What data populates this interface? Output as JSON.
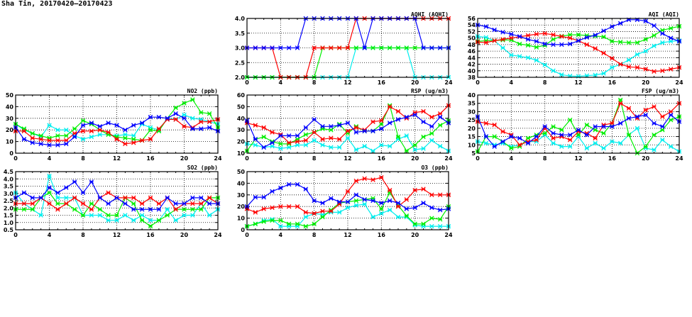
{
  "title": "Sha Tin, 20170420—20170423",
  "series_colors": {
    "blue": "#0000ff",
    "red": "#ff0000",
    "green": "#00ee00",
    "cyan": "#00eeee"
  },
  "chart_data": [
    {
      "id": "aqhi",
      "type": "line",
      "title": "AQHI (AQHI)",
      "xlim": [
        0,
        24
      ],
      "xticks": [
        0,
        4,
        8,
        12,
        16,
        20,
        24
      ],
      "ylim": [
        2,
        4
      ],
      "yticks": [
        "2.0",
        "2.5",
        "3.0",
        "3.5",
        "4.0"
      ],
      "grid": true,
      "series": [
        {
          "name": "cyan",
          "values": [
            2,
            2,
            2,
            2,
            2,
            2,
            2,
            2,
            2,
            2,
            2,
            2,
            2,
            3,
            3,
            3,
            3,
            3,
            3,
            3,
            2,
            2,
            2,
            2,
            2
          ]
        },
        {
          "name": "green",
          "values": [
            2,
            2,
            2,
            2,
            2,
            2,
            2,
            2,
            2,
            3,
            3,
            3,
            3,
            3,
            3,
            3,
            3,
            3,
            3,
            3,
            3,
            3,
            3,
            3,
            3
          ]
        },
        {
          "name": "red",
          "values": [
            3,
            3,
            3,
            3,
            2,
            2,
            2,
            2,
            3,
            3,
            3,
            3,
            3,
            4,
            4,
            4,
            4,
            4,
            4,
            4,
            4,
            4,
            4,
            4,
            4
          ]
        },
        {
          "name": "blue",
          "values": [
            3,
            3,
            3,
            3,
            3,
            3,
            3,
            4,
            4,
            4,
            4,
            4,
            4,
            4,
            3,
            4,
            4,
            4,
            4,
            4,
            4,
            3,
            3,
            3,
            3
          ]
        }
      ]
    },
    {
      "id": "aqi",
      "type": "line",
      "title": "AQI (AQI)",
      "xlim": [
        0,
        24
      ],
      "xticks": [
        0,
        4,
        8,
        12,
        16,
        20,
        24
      ],
      "ylim": [
        38,
        56
      ],
      "yticks": [
        "38",
        "40",
        "42",
        "44",
        "46",
        "48",
        "50",
        "52",
        "54",
        "56"
      ],
      "grid": true,
      "series": [
        {
          "name": "cyan",
          "values": [
            50.5,
            50.2,
            49.2,
            47,
            44.8,
            44.4,
            44,
            43.2,
            41.8,
            40,
            38.8,
            38.4,
            38.3,
            38.5,
            38.7,
            39.2,
            41,
            42,
            43.3,
            45,
            46,
            47.6,
            48.6,
            49,
            49.2
          ]
        },
        {
          "name": "green",
          "values": [
            49,
            49.2,
            49.2,
            49.4,
            49.4,
            48.2,
            47.8,
            47.2,
            47.8,
            49.6,
            50.6,
            51,
            51,
            50.8,
            50.6,
            50.4,
            49,
            48.8,
            48.6,
            48.6,
            49.6,
            50.8,
            52.4,
            53,
            53.6
          ]
        },
        {
          "name": "red",
          "values": [
            48.8,
            48.6,
            49.2,
            49.6,
            50,
            50.4,
            50.8,
            51.2,
            51.4,
            51,
            50.5,
            50,
            49.2,
            48,
            46.8,
            45.4,
            43.8,
            42,
            41.2,
            41,
            40.5,
            39.8,
            40,
            40.5,
            41
          ]
        },
        {
          "name": "blue",
          "values": [
            54,
            53.5,
            52.5,
            51.8,
            51.2,
            50.5,
            49.6,
            49,
            48.2,
            48,
            48,
            48.2,
            49.2,
            50.2,
            50.9,
            52.2,
            53.5,
            54.5,
            55.6,
            55.6,
            55.2,
            53.8,
            51.4,
            50,
            49
          ]
        }
      ]
    },
    {
      "id": "no2",
      "type": "line",
      "title": "NO2 (ppb)",
      "xlim": [
        0,
        24
      ],
      "xticks": [
        0,
        4,
        8,
        12,
        16,
        20,
        24
      ],
      "ylim": [
        0,
        50
      ],
      "yticks": [
        "0",
        "10",
        "20",
        "30",
        "40",
        "50"
      ],
      "grid": true,
      "series": [
        {
          "name": "cyan",
          "values": [
            25,
            20,
            17,
            14,
            24,
            20,
            20,
            15,
            12,
            14,
            16,
            16,
            15,
            16,
            15,
            25,
            22,
            20,
            30,
            29,
            33,
            30,
            29,
            27,
            25
          ]
        },
        {
          "name": "green",
          "values": [
            25,
            21,
            17,
            15,
            13,
            15,
            15,
            21,
            28,
            25,
            20,
            16,
            14,
            13,
            12,
            11,
            20,
            19,
            30,
            39,
            43,
            46,
            35,
            34,
            22
          ]
        },
        {
          "name": "red",
          "values": [
            19,
            19,
            13,
            12,
            11,
            11,
            11,
            17,
            19,
            19,
            20,
            18,
            12,
            8,
            9,
            11,
            12,
            21,
            29,
            29,
            23,
            22,
            27,
            27,
            29
          ]
        },
        {
          "name": "blue",
          "values": [
            22,
            12,
            9,
            8,
            7,
            7,
            8,
            14,
            24,
            26,
            23,
            26,
            24,
            20,
            24,
            26,
            31,
            31,
            30,
            34,
            30,
            21,
            21,
            22,
            19
          ]
        }
      ]
    },
    {
      "id": "rsp",
      "type": "line",
      "title": "RSP (ug/m3)",
      "xlim": [
        0,
        24
      ],
      "xticks": [
        0,
        4,
        8,
        12,
        16,
        20,
        24
      ],
      "ylim": [
        10,
        60
      ],
      "yticks": [
        "10",
        "20",
        "30",
        "40",
        "50",
        "60"
      ],
      "grid": true,
      "series": [
        {
          "name": "cyan",
          "values": [
            18,
            17,
            15,
            16,
            14,
            15,
            17,
            17,
            21,
            17,
            15,
            15,
            23,
            13,
            16,
            12,
            17,
            16,
            22,
            25,
            13,
            14,
            21,
            16,
            12
          ]
        },
        {
          "name": "green",
          "values": [
            12,
            22,
            24,
            20,
            18,
            18,
            22,
            26,
            28,
            31,
            30,
            35,
            27,
            33,
            29,
            29,
            35,
            51,
            24,
            12,
            17,
            24,
            27,
            34,
            38
          ]
        },
        {
          "name": "red",
          "values": [
            36,
            34,
            32,
            28,
            26,
            19,
            20,
            21,
            28,
            22,
            23,
            22,
            29,
            32,
            30,
            37,
            38,
            50,
            46,
            40,
            45,
            46,
            41,
            44,
            51
          ]
        },
        {
          "name": "blue",
          "values": [
            38,
            22,
            15,
            19,
            25,
            25,
            25,
            32,
            39,
            33,
            33,
            34,
            36,
            28,
            29,
            29,
            31,
            36,
            39,
            41,
            43,
            37,
            33,
            41,
            36
          ]
        }
      ]
    },
    {
      "id": "fsp",
      "type": "line",
      "title": "FSP (ug/m3)",
      "xlim": [
        0,
        24
      ],
      "xticks": [
        0,
        4,
        8,
        12,
        16,
        20,
        24
      ],
      "ylim": [
        5,
        40
      ],
      "yticks": [
        "5",
        "10",
        "15",
        "20",
        "25",
        "30",
        "35",
        "40"
      ],
      "grid": true,
      "series": [
        {
          "name": "cyan",
          "values": [
            12,
            11,
            10,
            11,
            9,
            10,
            12,
            12,
            16,
            11,
            9,
            9,
            15,
            8,
            11,
            8,
            12,
            11,
            16,
            20,
            8,
            7,
            13,
            9,
            6
          ]
        },
        {
          "name": "green",
          "values": [
            6,
            15,
            15,
            12,
            8,
            9,
            14,
            16,
            17,
            21,
            19,
            25,
            16,
            22,
            19,
            17,
            23,
            37,
            16,
            5,
            9,
            16,
            19,
            25,
            27
          ]
        },
        {
          "name": "red",
          "values": [
            24,
            23,
            22,
            18,
            16,
            10,
            12,
            13,
            20,
            14,
            15,
            13,
            18,
            17,
            14,
            22,
            23,
            35,
            32,
            26,
            31,
            33,
            27,
            30,
            35
          ]
        },
        {
          "name": "blue",
          "values": [
            27,
            15,
            9,
            12,
            15,
            14,
            11,
            15,
            21,
            17,
            16,
            16,
            19,
            16,
            21,
            21,
            21,
            23,
            26,
            27,
            28,
            23,
            21,
            28,
            24
          ]
        }
      ]
    },
    {
      "id": "so2",
      "type": "line",
      "title": "SO2 (ppb)",
      "xlim": [
        0,
        24
      ],
      "xticks": [
        0,
        4,
        8,
        12,
        16,
        20,
        24
      ],
      "ylim": [
        0.5,
        4.5
      ],
      "yticks": [
        "0.5",
        "1.0",
        "1.5",
        "2.0",
        "2.5",
        "3.0",
        "3.5",
        "4.0",
        "4.5"
      ],
      "grid": true,
      "series": [
        {
          "name": "cyan",
          "values": [
            3.05,
            2.3,
            1.9,
            1.5,
            4.2,
            2.7,
            2.7,
            2.7,
            1.5,
            1.5,
            1.5,
            1.15,
            1.15,
            1.5,
            1.15,
            1.5,
            1.15,
            1.15,
            1.9,
            1.15,
            1.5,
            1.5,
            2.3,
            1.5,
            1.9
          ]
        },
        {
          "name": "green",
          "values": [
            1.9,
            1.9,
            1.9,
            2.7,
            3.05,
            2.3,
            2.3,
            1.9,
            1.5,
            2.3,
            1.9,
            1.5,
            1.5,
            2.7,
            2.3,
            1.15,
            0.75,
            1.15,
            1.5,
            1.9,
            1.9,
            1.9,
            1.9,
            2.7,
            2.7
          ]
        },
        {
          "name": "red",
          "values": [
            2.3,
            2.3,
            2.3,
            2.7,
            2.3,
            1.9,
            2.3,
            2.7,
            2.3,
            1.9,
            2.7,
            3.05,
            2.7,
            2.7,
            2.7,
            2.3,
            2.7,
            2.3,
            2.7,
            1.9,
            2.3,
            2.3,
            2.3,
            2.7,
            2.3
          ]
        },
        {
          "name": "blue",
          "values": [
            2.7,
            3.05,
            2.7,
            2.7,
            3.4,
            3.05,
            3.4,
            3.8,
            3.05,
            3.8,
            2.7,
            2.3,
            2.7,
            2.3,
            1.9,
            1.9,
            1.9,
            1.9,
            2.7,
            2.3,
            2.3,
            2.7,
            2.7,
            2.3,
            2.3
          ]
        }
      ]
    },
    {
      "id": "o3",
      "type": "line",
      "title": "O3 (ppb)",
      "xlim": [
        0,
        24
      ],
      "xticks": [
        0,
        4,
        8,
        12,
        16,
        20,
        24
      ],
      "ylim": [
        0,
        50
      ],
      "yticks": [
        "0",
        "10",
        "20",
        "30",
        "40",
        "50"
      ],
      "grid": true,
      "series": [
        {
          "name": "cyan",
          "values": [
            3,
            5,
            8,
            9,
            3,
            3,
            3,
            11,
            14,
            13,
            15,
            15,
            19,
            21,
            22,
            11,
            14,
            17,
            11,
            11,
            4,
            3,
            3,
            3,
            3
          ]
        },
        {
          "name": "green",
          "values": [
            3,
            5,
            7,
            8,
            8,
            5,
            5,
            3,
            5,
            11,
            17,
            23,
            24,
            25,
            26,
            27,
            18,
            32,
            21,
            12,
            5,
            5,
            10,
            9,
            20
          ]
        },
        {
          "name": "red",
          "values": [
            18,
            15,
            18,
            19,
            20,
            20,
            20,
            15,
            14,
            16,
            16,
            22,
            33,
            42,
            44,
            43,
            45,
            34,
            20,
            26,
            34,
            35,
            30,
            30,
            30
          ]
        },
        {
          "name": "blue",
          "values": [
            20,
            28,
            28,
            33,
            36,
            39,
            39,
            35,
            25,
            23,
            27,
            24,
            24,
            30,
            26,
            25,
            23,
            25,
            23,
            18,
            19,
            23,
            19,
            17,
            18
          ]
        }
      ]
    }
  ]
}
